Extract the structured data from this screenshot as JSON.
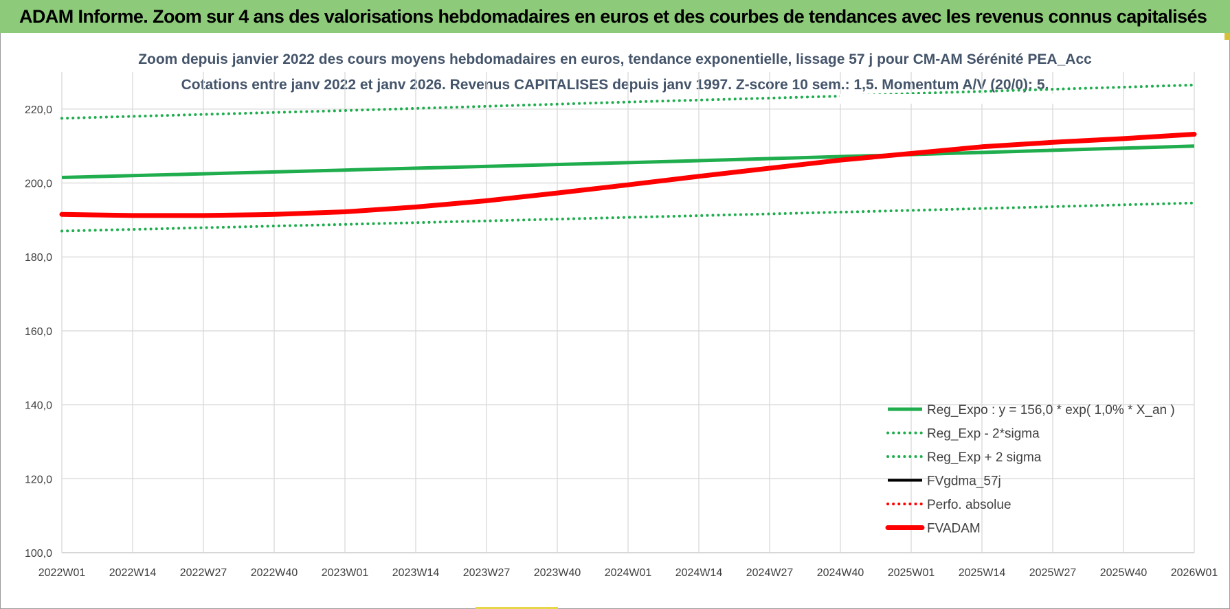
{
  "header": {
    "title": "ADAM Informe. Zoom sur 4 ans des valorisations hebdomadaires en euros et des courbes de tendances avec les revenus connus capitalisés"
  },
  "chart_data": {
    "type": "line",
    "title_line1": "Zoom depuis janvier 2022 des cours moyens hebdomadaires en euros, tendance exponentielle, lissage 57 j pour CM-AM Sérénité PEA_Acc",
    "title_line2": "Cotations entre janv 2022 et janv 2026. Revenus CAPITALISES depuis janv 1997. Z-score 10 sem.: 1,5. Momentum A/V (20/0): 5.",
    "x_tick_labels": [
      "2022W01",
      "2022W14",
      "2022W27",
      "2022W40",
      "2023W01",
      "2023W14",
      "2023W27",
      "2023W40",
      "2024W01",
      "2024W14",
      "2024W27",
      "2024W40",
      "2025W01",
      "2025W14",
      "2025W27",
      "2025W40",
      "2026W01"
    ],
    "y_tick_labels": [
      "100,0",
      "120,0",
      "140,0",
      "160,0",
      "180,0",
      "200,0",
      "220,0"
    ],
    "ylim": [
      100,
      230
    ],
    "yticks": [
      100,
      120,
      140,
      160,
      180,
      200,
      220
    ],
    "grid": true,
    "legend_position": "bottom-right",
    "colors": {
      "green": "#1fad4e",
      "red": "#ff0000",
      "black": "#000000",
      "grid": "#d9d9d9",
      "axis": "#bfbfbf"
    },
    "series": [
      {
        "name": "Reg_Expo : y = 156,0 * exp( 1,0% *  X_an )",
        "style": "solid-green",
        "x": [
          0,
          4,
          8,
          12,
          16
        ],
        "values": [
          201.5,
          203.5,
          205.5,
          207.7,
          210.0
        ]
      },
      {
        "name": "Reg_Exp - 2*sigma",
        "style": "dotted-green",
        "x": [
          0,
          4,
          8,
          12,
          16
        ],
        "values": [
          187.0,
          188.8,
          190.7,
          192.6,
          194.6
        ]
      },
      {
        "name": "Reg_Exp + 2 sigma",
        "style": "dotted-green",
        "x": [
          0,
          4,
          8,
          11,
          12,
          16
        ],
        "values": [
          217.5,
          219.6,
          221.9,
          223.5,
          224.2,
          226.5
        ]
      },
      {
        "name": "FVgdma_57j",
        "style": "solid-black",
        "x": [],
        "values": []
      },
      {
        "name": "Perfo. absolue",
        "style": "dotted-red",
        "x": [],
        "values": []
      },
      {
        "name": "FVADAM",
        "style": "solid-red-thick",
        "x": [
          0,
          1,
          2,
          3,
          4,
          5,
          6,
          7,
          8,
          9,
          10,
          11,
          12,
          13,
          14,
          15,
          16
        ],
        "values": [
          191.5,
          191.2,
          191.2,
          191.5,
          192.2,
          193.5,
          195.2,
          197.3,
          199.5,
          201.8,
          204.0,
          206.2,
          208.0,
          209.8,
          211.0,
          212.0,
          213.2
        ]
      }
    ]
  }
}
